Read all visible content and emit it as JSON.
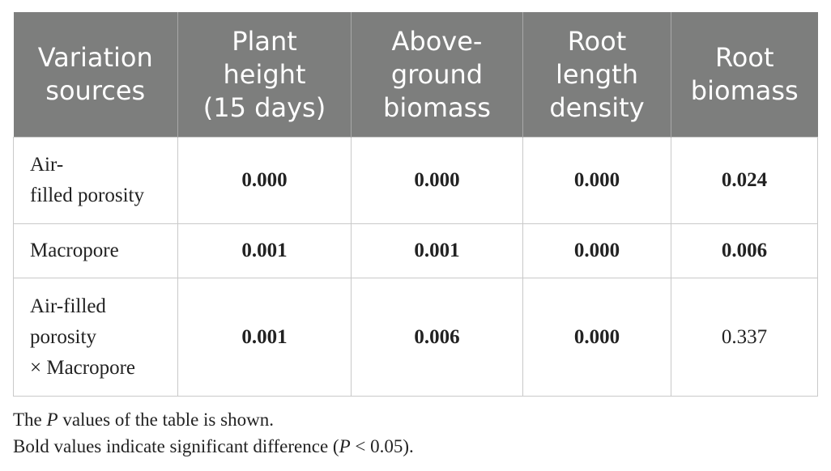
{
  "table": {
    "headers": [
      {
        "lines": [
          "Variation",
          "sources"
        ]
      },
      {
        "lines": [
          "Plant",
          "height",
          "(15 days)"
        ]
      },
      {
        "lines": [
          "Above-",
          "ground",
          "biomass"
        ]
      },
      {
        "lines": [
          "Root",
          "length",
          "density"
        ]
      },
      {
        "lines": [
          "Root",
          "biomass"
        ]
      }
    ],
    "rows": [
      {
        "label_lines": [
          "Air-",
          "filled porosity"
        ],
        "values": [
          "0.000",
          "0.000",
          "0.000",
          "0.024"
        ]
      },
      {
        "label_lines": [
          "Macropore"
        ],
        "values": [
          "0.001",
          "0.001",
          "0.000",
          "0.006"
        ]
      },
      {
        "label_lines": [
          "Air-filled",
          "porosity",
          "× Macropore"
        ],
        "values": [
          "0.001",
          "0.006",
          "0.000",
          "0.337"
        ]
      }
    ]
  },
  "notes": {
    "line1_pre": "The ",
    "line1_italic": "P",
    "line1_post": " values of the table is shown.",
    "line2_pre": "Bold values indicate significant difference (",
    "line2_italic": "P",
    "line2_post": " < 0.05)."
  }
}
